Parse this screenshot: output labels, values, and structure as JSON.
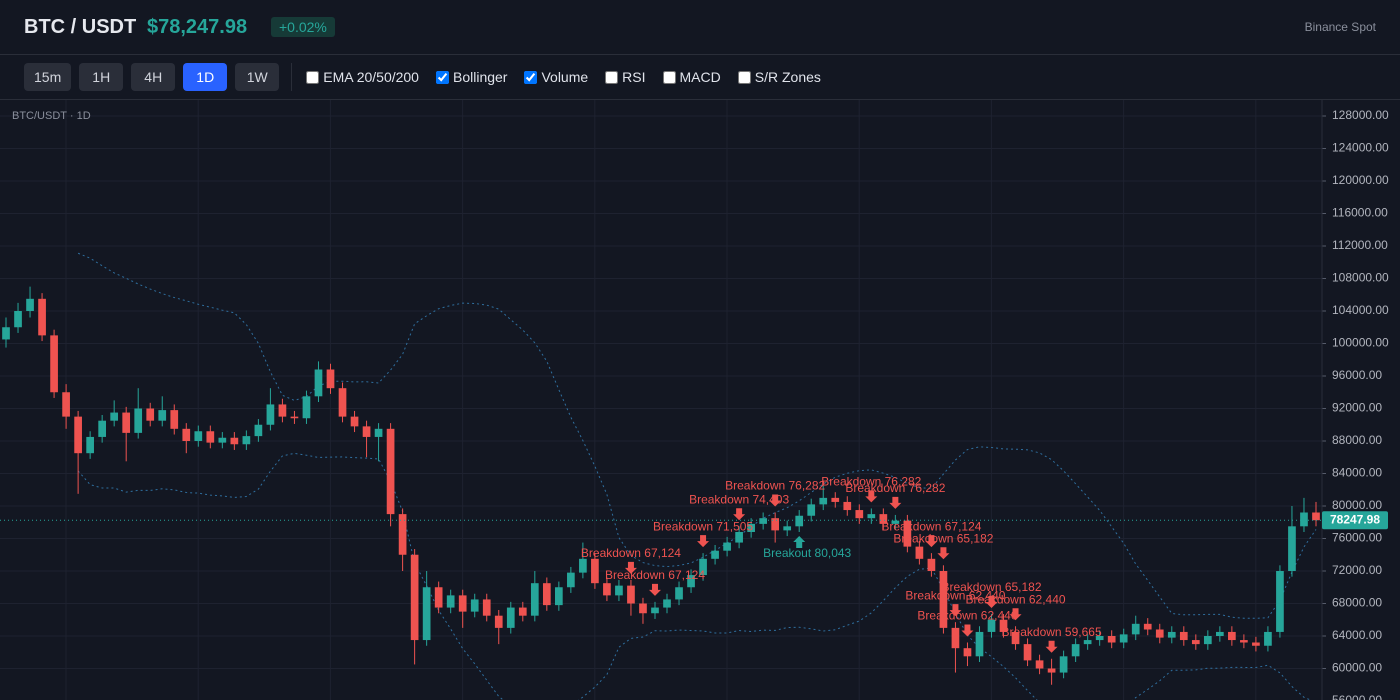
{
  "header": {
    "symbol": "BTC / USDT",
    "price": "$78,247.98",
    "change": "+0.02%",
    "exchange": "Binance Spot"
  },
  "toolbar": {
    "timeframes": [
      "15m",
      "1H",
      "4H",
      "1D",
      "1W"
    ],
    "active": "1D",
    "indicators": [
      {
        "label": "EMA 20/50/200",
        "checked": false
      },
      {
        "label": "Bollinger",
        "checked": true
      },
      {
        "label": "Volume",
        "checked": true
      },
      {
        "label": "RSI",
        "checked": false
      },
      {
        "label": "MACD",
        "checked": false
      },
      {
        "label": "S/R Zones",
        "checked": false
      }
    ]
  },
  "chart_data": {
    "type": "candlestick",
    "label": "BTC/USDT · 1D",
    "ylim": [
      56123,
      129969
    ],
    "yticks": [
      {
        "value": 56000,
        "label": "56000.00"
      },
      {
        "value": 60000,
        "label": "60000.00"
      },
      {
        "value": 64000,
        "label": "64000.00"
      },
      {
        "value": 68000,
        "label": "68000.00"
      },
      {
        "value": 72000,
        "label": "72000.00"
      },
      {
        "value": 76000,
        "label": "76000.00"
      },
      {
        "value": 80000,
        "label": "80000.00"
      },
      {
        "value": 84000,
        "label": "84000.00"
      },
      {
        "value": 88000,
        "label": "88000.00"
      },
      {
        "value": 92000,
        "label": "92000.00"
      },
      {
        "value": 96000,
        "label": "96000.00"
      },
      {
        "value": 100000,
        "label": "100000.00"
      },
      {
        "value": 104000,
        "label": "104000.00"
      },
      {
        "value": 108000,
        "label": "108000.00"
      },
      {
        "value": 112000,
        "label": "112000.00"
      },
      {
        "value": 116000,
        "label": "116000.00"
      },
      {
        "value": 120000,
        "label": "120000.00"
      },
      {
        "value": 124000,
        "label": "124000.00"
      },
      {
        "value": 128000,
        "label": "128000.00"
      }
    ],
    "last_price": 78247.98,
    "up_color": "#26a69a",
    "down_color": "#ef5350",
    "band_color": "#2f6f9f",
    "candles": [
      {
        "o": 100500,
        "h": 103200,
        "l": 99500,
        "c": 102000
      },
      {
        "o": 102000,
        "h": 105000,
        "l": 101300,
        "c": 104000
      },
      {
        "o": 104000,
        "h": 107000,
        "l": 103200,
        "c": 105500
      },
      {
        "o": 105500,
        "h": 106200,
        "l": 100300,
        "c": 101000
      },
      {
        "o": 101000,
        "h": 101700,
        "l": 93300,
        "c": 94000
      },
      {
        "o": 94000,
        "h": 95000,
        "l": 89500,
        "c": 91000
      },
      {
        "o": 91000,
        "h": 91700,
        "l": 81500,
        "c": 86500
      },
      {
        "o": 86500,
        "h": 89200,
        "l": 85800,
        "c": 88500
      },
      {
        "o": 88500,
        "h": 91200,
        "l": 87800,
        "c": 90500
      },
      {
        "o": 90500,
        "h": 93000,
        "l": 89800,
        "c": 91500
      },
      {
        "o": 91500,
        "h": 92200,
        "l": 85500,
        "c": 89000
      },
      {
        "o": 89000,
        "h": 94500,
        "l": 88300,
        "c": 92000
      },
      {
        "o": 92000,
        "h": 92700,
        "l": 89800,
        "c": 90500
      },
      {
        "o": 90500,
        "h": 93500,
        "l": 89800,
        "c": 91800
      },
      {
        "o": 91800,
        "h": 92500,
        "l": 88800,
        "c": 89500
      },
      {
        "o": 89500,
        "h": 90200,
        "l": 86500,
        "c": 88000
      },
      {
        "o": 88000,
        "h": 89900,
        "l": 87300,
        "c": 89200
      },
      {
        "o": 89200,
        "h": 89900,
        "l": 87100,
        "c": 87800
      },
      {
        "o": 87800,
        "h": 89100,
        "l": 87100,
        "c": 88400
      },
      {
        "o": 88400,
        "h": 89100,
        "l": 86900,
        "c": 87600
      },
      {
        "o": 87600,
        "h": 89300,
        "l": 86900,
        "c": 88600
      },
      {
        "o": 88600,
        "h": 90700,
        "l": 87900,
        "c": 90000
      },
      {
        "o": 90000,
        "h": 94500,
        "l": 89300,
        "c": 92500
      },
      {
        "o": 92500,
        "h": 93200,
        "l": 90300,
        "c": 91000
      },
      {
        "o": 91000,
        "h": 91700,
        "l": 90100,
        "c": 90800
      },
      {
        "o": 90800,
        "h": 94200,
        "l": 90100,
        "c": 93500
      },
      {
        "o": 93500,
        "h": 97800,
        "l": 92800,
        "c": 96800
      },
      {
        "o": 96800,
        "h": 97500,
        "l": 93800,
        "c": 94500
      },
      {
        "o": 94500,
        "h": 95200,
        "l": 90300,
        "c": 91000
      },
      {
        "o": 91000,
        "h": 91700,
        "l": 89100,
        "c": 89800
      },
      {
        "o": 89800,
        "h": 90500,
        "l": 86000,
        "c": 88500
      },
      {
        "o": 88500,
        "h": 90200,
        "l": 85500,
        "c": 89500
      },
      {
        "o": 89500,
        "h": 90200,
        "l": 77500,
        "c": 79000
      },
      {
        "o": 79000,
        "h": 79700,
        "l": 72000,
        "c": 74000
      },
      {
        "o": 74000,
        "h": 74700,
        "l": 60500,
        "c": 63500
      },
      {
        "o": 63500,
        "h": 72000,
        "l": 62800,
        "c": 70000
      },
      {
        "o": 70000,
        "h": 70700,
        "l": 66800,
        "c": 67500
      },
      {
        "o": 67500,
        "h": 69700,
        "l": 66800,
        "c": 69000
      },
      {
        "o": 69000,
        "h": 69700,
        "l": 65000,
        "c": 67000
      },
      {
        "o": 67000,
        "h": 69200,
        "l": 66300,
        "c": 68500
      },
      {
        "o": 68500,
        "h": 69200,
        "l": 65800,
        "c": 66500
      },
      {
        "o": 66500,
        "h": 67200,
        "l": 63000,
        "c": 65000
      },
      {
        "o": 65000,
        "h": 68200,
        "l": 64300,
        "c": 67500
      },
      {
        "o": 67500,
        "h": 68200,
        "l": 65800,
        "c": 66500
      },
      {
        "o": 66500,
        "h": 72000,
        "l": 65800,
        "c": 70500
      },
      {
        "o": 70500,
        "h": 71200,
        "l": 67100,
        "c": 67800
      },
      {
        "o": 67800,
        "h": 70700,
        "l": 67100,
        "c": 70000
      },
      {
        "o": 70000,
        "h": 72500,
        "l": 69300,
        "c": 71800
      },
      {
        "o": 71800,
        "h": 75500,
        "l": 71100,
        "c": 73500
      },
      {
        "o": 73500,
        "h": 74200,
        "l": 69800,
        "c": 70500
      },
      {
        "o": 70500,
        "h": 71200,
        "l": 68300,
        "c": 69000
      },
      {
        "o": 69000,
        "h": 70900,
        "l": 68300,
        "c": 70200
      },
      {
        "o": 70200,
        "h": 70900,
        "l": 66500,
        "c": 68000,
        "signal": {
          "label": "Breakdown 67,124",
          "side": "down"
        }
      },
      {
        "o": 68000,
        "h": 68700,
        "l": 65500,
        "c": 66800
      },
      {
        "o": 66800,
        "h": 68200,
        "l": 66100,
        "c": 67500,
        "signal": {
          "label": "Breakdown 67,124",
          "side": "down"
        }
      },
      {
        "o": 67500,
        "h": 69200,
        "l": 66800,
        "c": 68500
      },
      {
        "o": 68500,
        "h": 70700,
        "l": 67800,
        "c": 70000
      },
      {
        "o": 70000,
        "h": 72200,
        "l": 69300,
        "c": 71500
      },
      {
        "o": 71500,
        "h": 74200,
        "l": 70800,
        "c": 73500,
        "signal": {
          "label": "Breakdown 71,505",
          "side": "down"
        }
      },
      {
        "o": 73500,
        "h": 75200,
        "l": 72800,
        "c": 74500
      },
      {
        "o": 74500,
        "h": 76200,
        "l": 73800,
        "c": 75500
      },
      {
        "o": 75500,
        "h": 77500,
        "l": 74800,
        "c": 76800,
        "signal": {
          "label": "Breakdown 74,403",
          "side": "down"
        }
      },
      {
        "o": 76800,
        "h": 78500,
        "l": 76100,
        "c": 77800
      },
      {
        "o": 77800,
        "h": 79200,
        "l": 77100,
        "c": 78500
      },
      {
        "o": 78500,
        "h": 79200,
        "l": 75500,
        "c": 77000,
        "signal": {
          "label": "Breakdown 76,282",
          "side": "down"
        }
      },
      {
        "o": 77000,
        "h": 78200,
        "l": 76300,
        "c": 77500
      },
      {
        "o": 77500,
        "h": 79500,
        "l": 76800,
        "c": 78800,
        "signal": {
          "label": "Breakout 80,043",
          "side": "up"
        }
      },
      {
        "o": 78800,
        "h": 80900,
        "l": 78100,
        "c": 80200
      },
      {
        "o": 80200,
        "h": 82500,
        "l": 79500,
        "c": 81000
      },
      {
        "o": 81000,
        "h": 81700,
        "l": 79800,
        "c": 80500
      },
      {
        "o": 80500,
        "h": 81200,
        "l": 78800,
        "c": 79500
      },
      {
        "o": 79500,
        "h": 80200,
        "l": 77800,
        "c": 78500
      },
      {
        "o": 78500,
        "h": 79700,
        "l": 77800,
        "c": 79000,
        "signal": {
          "label": "Breakdown 76,282",
          "side": "down"
        }
      },
      {
        "o": 79000,
        "h": 79700,
        "l": 77100,
        "c": 77800
      },
      {
        "o": 77800,
        "h": 78900,
        "l": 77100,
        "c": 78200,
        "signal": {
          "label": "Breakdown 76,282",
          "side": "down"
        }
      },
      {
        "o": 78200,
        "h": 78900,
        "l": 74300,
        "c": 75000
      },
      {
        "o": 75000,
        "h": 75700,
        "l": 72800,
        "c": 73500
      },
      {
        "o": 73500,
        "h": 74200,
        "l": 71300,
        "c": 72000,
        "signal": {
          "label": "Breakdown 67,124",
          "side": "down"
        }
      },
      {
        "o": 72000,
        "h": 72700,
        "l": 64300,
        "c": 65000,
        "signal": {
          "label": "Breakdown 65,182",
          "side": "down"
        }
      },
      {
        "o": 65000,
        "h": 65700,
        "l": 59500,
        "c": 62500,
        "signal": {
          "label": "Breakdown 62,440",
          "side": "down"
        }
      },
      {
        "o": 62500,
        "h": 63200,
        "l": 60300,
        "c": 61500,
        "signal": {
          "label": "Breakdown 62,440",
          "side": "down"
        }
      },
      {
        "o": 61500,
        "h": 65200,
        "l": 60800,
        "c": 64500
      },
      {
        "o": 64500,
        "h": 66700,
        "l": 63800,
        "c": 66000,
        "signal": {
          "label": "Breakdown 65,182",
          "side": "down"
        }
      },
      {
        "o": 66000,
        "h": 66700,
        "l": 63800,
        "c": 64500
      },
      {
        "o": 64500,
        "h": 65200,
        "l": 62300,
        "c": 63000,
        "signal": {
          "label": "Breakdown 62,440",
          "side": "down"
        }
      },
      {
        "o": 63000,
        "h": 63700,
        "l": 60300,
        "c": 61000
      },
      {
        "o": 61000,
        "h": 61700,
        "l": 59300,
        "c": 60000
      },
      {
        "o": 60000,
        "h": 61200,
        "l": 58000,
        "c": 59500,
        "signal": {
          "label": "Breakdown 59,665",
          "side": "down"
        }
      },
      {
        "o": 59500,
        "h": 62200,
        "l": 58800,
        "c": 61500
      },
      {
        "o": 61500,
        "h": 63700,
        "l": 60800,
        "c": 63000
      },
      {
        "o": 63000,
        "h": 64200,
        "l": 62300,
        "c": 63500
      },
      {
        "o": 63500,
        "h": 64700,
        "l": 62800,
        "c": 64000
      },
      {
        "o": 64000,
        "h": 64700,
        "l": 62500,
        "c": 63200
      },
      {
        "o": 63200,
        "h": 64900,
        "l": 62500,
        "c": 64200
      },
      {
        "o": 64200,
        "h": 66500,
        "l": 63500,
        "c": 65500
      },
      {
        "o": 65500,
        "h": 66200,
        "l": 64100,
        "c": 64800
      },
      {
        "o": 64800,
        "h": 65500,
        "l": 63100,
        "c": 63800
      },
      {
        "o": 63800,
        "h": 65200,
        "l": 63100,
        "c": 64500
      },
      {
        "o": 64500,
        "h": 65200,
        "l": 62800,
        "c": 63500
      },
      {
        "o": 63500,
        "h": 64200,
        "l": 62300,
        "c": 63000
      },
      {
        "o": 63000,
        "h": 64700,
        "l": 62300,
        "c": 64000
      },
      {
        "o": 64000,
        "h": 65200,
        "l": 63300,
        "c": 64500
      },
      {
        "o": 64500,
        "h": 65200,
        "l": 62800,
        "c": 63500
      },
      {
        "o": 63500,
        "h": 64200,
        "l": 62500,
        "c": 63200
      },
      {
        "o": 63200,
        "h": 63900,
        "l": 62100,
        "c": 62800
      },
      {
        "o": 62800,
        "h": 65200,
        "l": 62100,
        "c": 64500
      },
      {
        "o": 64500,
        "h": 72700,
        "l": 63800,
        "c": 72000
      },
      {
        "o": 72000,
        "h": 80000,
        "l": 71300,
        "c": 77500
      },
      {
        "o": 77500,
        "h": 81000,
        "l": 76800,
        "c": 79200
      },
      {
        "o": 79200,
        "h": 80500,
        "l": 77500,
        "c": 78247.98
      }
    ]
  }
}
